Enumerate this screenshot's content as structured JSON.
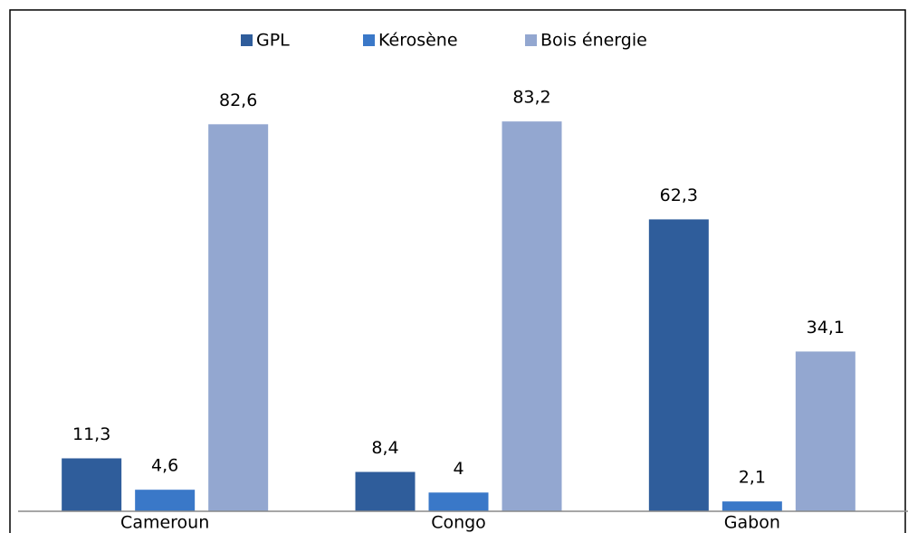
{
  "chart_data": {
    "type": "bar",
    "categories": [
      "Cameroun",
      "Congo",
      "Gabon"
    ],
    "series": [
      {
        "name": "GPL",
        "color": "#2f5d9b",
        "values": [
          11.3,
          8.4,
          62.3
        ],
        "value_labels": [
          "11,3",
          "8,4",
          "62,3"
        ]
      },
      {
        "name": "Kérosène",
        "color": "#3a78c8",
        "values": [
          4.6,
          4,
          2.1
        ],
        "value_labels": [
          "4,6",
          "4",
          "2,1"
        ]
      },
      {
        "name": "Bois énergie",
        "color": "#93a7d0",
        "values": [
          82.6,
          83.2,
          34.1
        ],
        "value_labels": [
          "82,6",
          "83,2",
          "34,1"
        ]
      }
    ],
    "ylim": [
      0,
      90
    ],
    "legend": "top"
  }
}
